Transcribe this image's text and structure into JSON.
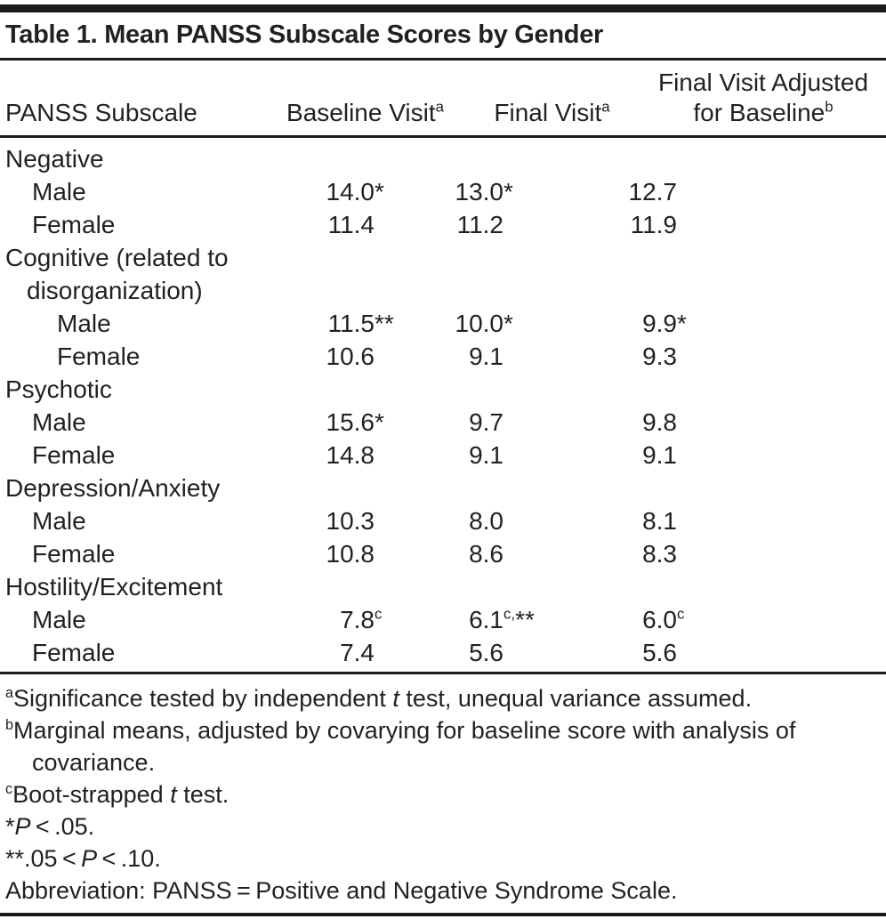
{
  "title": "Table 1. Mean PANSS Subscale Scores by Gender",
  "columns": {
    "subscale": "PANSS Subscale",
    "baseline": {
      "text": "Baseline Visit",
      "sup": "a"
    },
    "final": {
      "text": "Final Visit",
      "sup": "a"
    },
    "adjusted": {
      "line1": "Final Visit Adjusted",
      "line2": "for Baseline",
      "sup": "b"
    }
  },
  "rows": [
    {
      "type": "group",
      "label": "Negative",
      "indent": 0
    },
    {
      "type": "data",
      "label": "Male",
      "indent": 1,
      "values": [
        {
          "v": "14.0",
          "m": "*"
        },
        {
          "v": "13.0",
          "m": "*"
        },
        {
          "v": "12.7",
          "m": ""
        }
      ]
    },
    {
      "type": "data",
      "label": "Female",
      "indent": 1,
      "values": [
        {
          "v": "11.4",
          "m": ""
        },
        {
          "v": "11.2",
          "m": ""
        },
        {
          "v": "11.9",
          "m": ""
        }
      ]
    },
    {
      "type": "group",
      "label": "Cognitive (related to disorganization)",
      "indent": 0,
      "hanging": true
    },
    {
      "type": "data",
      "label": "Male",
      "indent": 2,
      "values": [
        {
          "v": "11.5",
          "m": "**"
        },
        {
          "v": "10.0",
          "m": "*"
        },
        {
          "v": "9.9",
          "m": "*"
        }
      ]
    },
    {
      "type": "data",
      "label": "Female",
      "indent": 2,
      "values": [
        {
          "v": "10.6",
          "m": ""
        },
        {
          "v": "9.1",
          "m": ""
        },
        {
          "v": "9.3",
          "m": ""
        }
      ]
    },
    {
      "type": "group",
      "label": "Psychotic",
      "indent": 0
    },
    {
      "type": "data",
      "label": "Male",
      "indent": 1,
      "values": [
        {
          "v": "15.6",
          "m": "*"
        },
        {
          "v": "9.7",
          "m": ""
        },
        {
          "v": "9.8",
          "m": ""
        }
      ]
    },
    {
      "type": "data",
      "label": "Female",
      "indent": 1,
      "values": [
        {
          "v": "14.8",
          "m": ""
        },
        {
          "v": "9.1",
          "m": ""
        },
        {
          "v": "9.1",
          "m": ""
        }
      ]
    },
    {
      "type": "group",
      "label": "Depression/Anxiety",
      "indent": 0
    },
    {
      "type": "data",
      "label": "Male",
      "indent": 1,
      "values": [
        {
          "v": "10.3",
          "m": ""
        },
        {
          "v": "8.0",
          "m": ""
        },
        {
          "v": "8.1",
          "m": ""
        }
      ]
    },
    {
      "type": "data",
      "label": "Female",
      "indent": 1,
      "values": [
        {
          "v": "10.8",
          "m": ""
        },
        {
          "v": "8.6",
          "m": ""
        },
        {
          "v": "8.3",
          "m": ""
        }
      ]
    },
    {
      "type": "group",
      "label": "Hostility/Excitement",
      "indent": 0
    },
    {
      "type": "data",
      "label": "Male",
      "indent": 1,
      "values": [
        {
          "v": "7.8",
          "m": "^c^"
        },
        {
          "v": "6.1",
          "m": "^c,^**"
        },
        {
          "v": "6.0",
          "m": "^c^"
        }
      ]
    },
    {
      "type": "data",
      "label": "Female",
      "indent": 1,
      "values": [
        {
          "v": "7.4",
          "m": ""
        },
        {
          "v": "5.6",
          "m": ""
        },
        {
          "v": "5.6",
          "m": ""
        }
      ]
    }
  ],
  "footnotes": [
    {
      "sup": "a",
      "text": "Significance tested by independent ~t~ test, unequal variance assumed."
    },
    {
      "sup": "b",
      "text": "Marginal means, adjusted by covarying for baseline score with analysis of"
    },
    {
      "indent": true,
      "text": "covariance."
    },
    {
      "sup": "c",
      "text": "Boot-strapped ~t~ test."
    },
    {
      "text": "*~P~ < .05."
    },
    {
      "text": "**.05 < ~P~ < .10."
    },
    {
      "text": "Abbreviation: PANSS = Positive and Negative Syndrome Scale."
    }
  ],
  "colors": {
    "text": "#241f20",
    "rule": "#1b1b1b",
    "background": "#ffffff"
  }
}
